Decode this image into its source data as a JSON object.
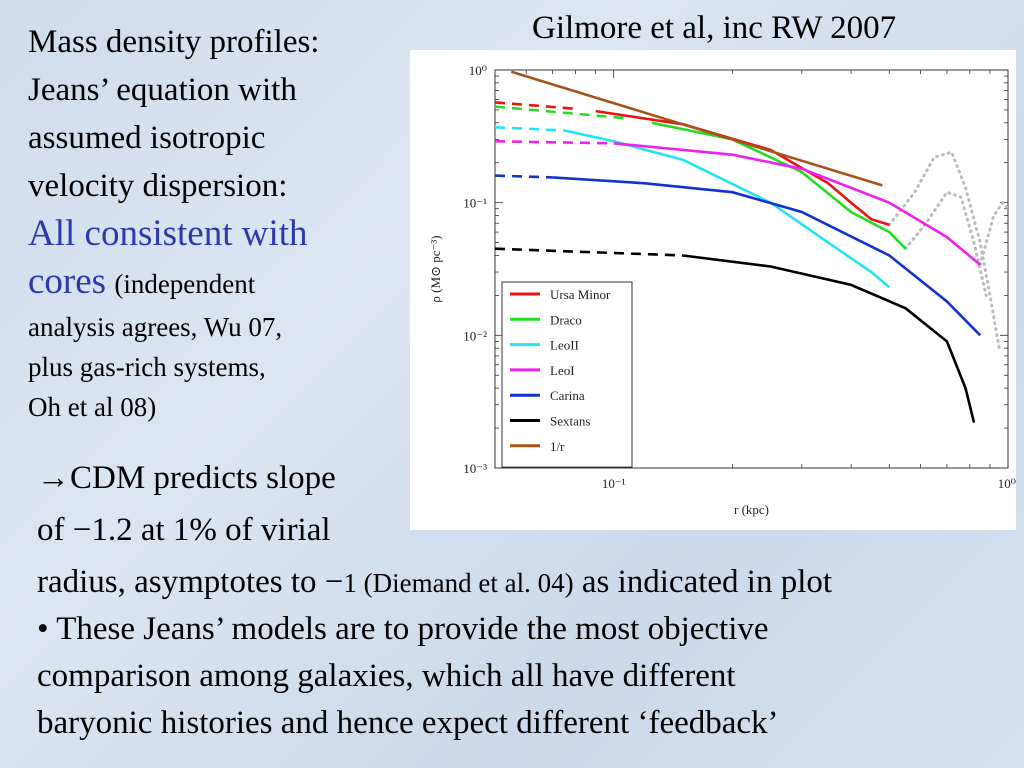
{
  "slide": {
    "left_line1": "Mass density profiles:",
    "left_line2": "Jeans’ equation with",
    "left_line3": "assumed isotropic",
    "left_line4": "velocity dispersion:",
    "left_highlight1": "All consistent with",
    "left_highlight2": "cores",
    "left_note1": "(independent",
    "left_note2": "analysis agrees, Wu 07,",
    "left_note3": "plus gas-rich systems,",
    "left_note4": "Oh et al 08)",
    "citation": "Gilmore et al, inc RW 2007",
    "cdm_arrow": "→",
    "cdm_line1": "CDM predicts slope",
    "cdm_line2": "of −1.2 at 1% of virial",
    "cdm_line3a": "radius, asymptotes to −",
    "cdm_line3b": "1 (Diemand et al. 04)",
    "cdm_line3c": "as indicated in plot",
    "bullet_line1": "• These Jeans’ models are to provide the most objective",
    "bullet_line2": "comparison among galaxies, which all have different",
    "bullet_line3": "baryonic histories and hence expect different ‘feedback’",
    "colors": {
      "highlight": "#2b3aa8"
    }
  },
  "chart_data": {
    "type": "line",
    "title": "",
    "xlabel": "r (kpc)",
    "ylabel": "ρ (M⊙ pc⁻³)",
    "x_scale": "log",
    "y_scale": "log",
    "xlim": [
      0.05,
      1.0
    ],
    "ylim": [
      0.001,
      1.0
    ],
    "x_ticks": [
      {
        "value": 0.1,
        "label": "10⁻¹"
      },
      {
        "value": 1.0,
        "label": "10⁰"
      }
    ],
    "y_ticks": [
      {
        "value": 1.0,
        "label": "10⁰"
      },
      {
        "value": 0.1,
        "label": "10⁻¹"
      },
      {
        "value": 0.01,
        "label": "10⁻²"
      },
      {
        "value": 0.001,
        "label": "10⁻³"
      }
    ],
    "legend_position": "lower-left",
    "series": [
      {
        "name": "Ursa Minor",
        "color": "#ee1111",
        "dashed": [
          [
            0.05,
            0.57
          ],
          [
            0.08,
            0.51
          ]
        ],
        "solid": [
          [
            0.09,
            0.49
          ],
          [
            0.15,
            0.39
          ],
          [
            0.25,
            0.25
          ],
          [
            0.35,
            0.14
          ],
          [
            0.4,
            0.1
          ],
          [
            0.45,
            0.075
          ],
          [
            0.5,
            0.068
          ]
        ]
      },
      {
        "name": "Draco",
        "color": "#22dd22",
        "dashed": [
          [
            0.05,
            0.53
          ],
          [
            0.11,
            0.43
          ]
        ],
        "solid": [
          [
            0.125,
            0.4
          ],
          [
            0.2,
            0.3
          ],
          [
            0.3,
            0.17
          ],
          [
            0.4,
            0.085
          ],
          [
            0.5,
            0.06
          ],
          [
            0.55,
            0.045
          ]
        ]
      },
      {
        "name": "LeoII",
        "color": "#22e4f4",
        "dashed": [
          [
            0.05,
            0.37
          ],
          [
            0.075,
            0.35
          ]
        ],
        "solid": [
          [
            0.075,
            0.35
          ],
          [
            0.1,
            0.29
          ],
          [
            0.15,
            0.21
          ],
          [
            0.25,
            0.1
          ],
          [
            0.35,
            0.05
          ],
          [
            0.45,
            0.03
          ],
          [
            0.5,
            0.023
          ]
        ]
      },
      {
        "name": "LeoI",
        "color": "#ee22ee",
        "dashed": [
          [
            0.05,
            0.29
          ],
          [
            0.1,
            0.28
          ]
        ],
        "solid": [
          [
            0.1,
            0.28
          ],
          [
            0.2,
            0.23
          ],
          [
            0.3,
            0.18
          ],
          [
            0.5,
            0.1
          ],
          [
            0.7,
            0.055
          ],
          [
            0.85,
            0.034
          ]
        ]
      },
      {
        "name": "Carina",
        "color": "#1133cc",
        "dashed": [
          [
            0.05,
            0.16
          ],
          [
            0.07,
            0.155
          ]
        ],
        "solid": [
          [
            0.07,
            0.155
          ],
          [
            0.12,
            0.14
          ],
          [
            0.2,
            0.12
          ],
          [
            0.3,
            0.085
          ],
          [
            0.5,
            0.04
          ],
          [
            0.7,
            0.018
          ],
          [
            0.85,
            0.01
          ]
        ]
      },
      {
        "name": "Sextans",
        "color": "#000000",
        "dashed": [
          [
            0.05,
            0.045
          ],
          [
            0.15,
            0.04
          ]
        ],
        "solid": [
          [
            0.15,
            0.04
          ],
          [
            0.25,
            0.033
          ],
          [
            0.4,
            0.024
          ],
          [
            0.55,
            0.016
          ],
          [
            0.7,
            0.009
          ],
          [
            0.78,
            0.004
          ],
          [
            0.82,
            0.0022
          ]
        ]
      },
      {
        "name": "1/r",
        "color": "#a5531e",
        "solid": [
          [
            0.055,
            0.97
          ],
          [
            0.48,
            0.135
          ]
        ]
      }
    ],
    "extra_dotted_curves": {
      "color": "#bbbbbb",
      "curves": [
        [
          [
            0.5,
            0.068
          ],
          [
            0.58,
            0.12
          ],
          [
            0.65,
            0.22
          ],
          [
            0.72,
            0.24
          ],
          [
            0.78,
            0.13
          ],
          [
            0.85,
            0.05
          ],
          [
            0.9,
            0.02
          ],
          [
            0.95,
            0.008
          ]
        ],
        [
          [
            0.55,
            0.045
          ],
          [
            0.62,
            0.07
          ],
          [
            0.7,
            0.12
          ],
          [
            0.76,
            0.11
          ],
          [
            0.82,
            0.05
          ],
          [
            0.88,
            0.02
          ]
        ],
        [
          [
            0.85,
            0.034
          ],
          [
            0.92,
            0.08
          ],
          [
            0.97,
            0.1
          ],
          [
            1.0,
            0.09
          ]
        ]
      ]
    }
  }
}
